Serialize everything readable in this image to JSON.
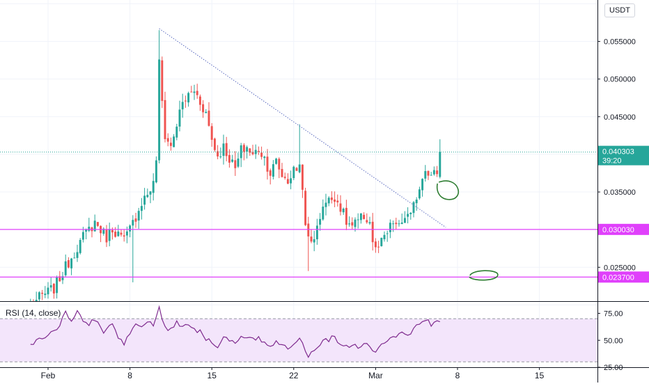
{
  "chart_data": {
    "type": "candlestick",
    "symbol_quote": "USDT",
    "price_axis": {
      "range": [
        0.0205,
        0.0605
      ],
      "ticks": [
        "0.055000",
        "0.050000",
        "0.045000",
        "0.035000",
        "0.025000"
      ],
      "clipped_ticks": [
        "0.060000",
        "0.040000",
        "0.030000",
        "0.020000"
      ]
    },
    "time_axis": {
      "labels": [
        {
          "label": "Feb",
          "bar": 0
        },
        {
          "label": "8",
          "bar": 28
        },
        {
          "label": "15",
          "bar": 56
        },
        {
          "label": "22",
          "bar": 84
        },
        {
          "label": "Mar",
          "bar": 112
        },
        {
          "label": "8",
          "bar": 140
        },
        {
          "label": "15",
          "bar": 168
        }
      ],
      "bars_per_day": 4,
      "first_bar_offset": -6
    },
    "last_price": {
      "value": 0.040303,
      "label": "0.040303",
      "countdown": "39:20",
      "color": "#26a69a"
    },
    "horizontal_levels": [
      {
        "value": 0.03003,
        "label": "0.030030",
        "color": "#e040fb"
      },
      {
        "value": 0.0237,
        "label": "0.023700",
        "color": "#e040fb"
      }
    ],
    "trendline": {
      "from": {
        "bar": 38,
        "price": 0.0567
      },
      "to": {
        "bar": 136,
        "price": 0.0303
      },
      "style": "dotted",
      "color": "#5b6bc0"
    },
    "annotations": [
      {
        "type": "ellipse",
        "bar": 136,
        "price": 0.0352,
        "color": "#2e7d32"
      },
      {
        "type": "ellipse",
        "bar": 149,
        "price": 0.0239,
        "color": "#2e7d32"
      }
    ],
    "up_color": "#26a69a",
    "down_color": "#ef5350",
    "waypoints": [
      {
        "bar": -6,
        "price": 0.02
      },
      {
        "bar": -2,
        "price": 0.0212
      },
      {
        "bar": 2,
        "price": 0.0222
      },
      {
        "bar": 6,
        "price": 0.025
      },
      {
        "bar": 10,
        "price": 0.0277
      },
      {
        "bar": 12,
        "price": 0.029
      },
      {
        "bar": 14,
        "price": 0.03
      },
      {
        "bar": 16,
        "price": 0.031
      },
      {
        "bar": 18,
        "price": 0.03
      },
      {
        "bar": 20,
        "price": 0.029
      },
      {
        "bar": 22,
        "price": 0.0302
      },
      {
        "bar": 24,
        "price": 0.0294
      },
      {
        "bar": 26,
        "price": 0.0285
      },
      {
        "bar": 28,
        "price": 0.03
      },
      {
        "bar": 30,
        "price": 0.0318
      },
      {
        "bar": 32,
        "price": 0.0337
      },
      {
        "bar": 34,
        "price": 0.0348
      },
      {
        "bar": 36,
        "price": 0.036
      },
      {
        "bar": 37,
        "price": 0.0395
      },
      {
        "bar": 38,
        "price": 0.052
      },
      {
        "bar": 39,
        "price": 0.047
      },
      {
        "bar": 40,
        "price": 0.0425
      },
      {
        "bar": 42,
        "price": 0.041
      },
      {
        "bar": 44,
        "price": 0.044
      },
      {
        "bar": 46,
        "price": 0.0468
      },
      {
        "bar": 48,
        "price": 0.0478
      },
      {
        "bar": 50,
        "price": 0.0485
      },
      {
        "bar": 52,
        "price": 0.047
      },
      {
        "bar": 54,
        "price": 0.0455
      },
      {
        "bar": 56,
        "price": 0.042
      },
      {
        "bar": 58,
        "price": 0.0398
      },
      {
        "bar": 60,
        "price": 0.041
      },
      {
        "bar": 62,
        "price": 0.0395
      },
      {
        "bar": 64,
        "price": 0.038
      },
      {
        "bar": 66,
        "price": 0.0405
      },
      {
        "bar": 68,
        "price": 0.041
      },
      {
        "bar": 70,
        "price": 0.0398
      },
      {
        "bar": 72,
        "price": 0.0408
      },
      {
        "bar": 74,
        "price": 0.0395
      },
      {
        "bar": 76,
        "price": 0.0375
      },
      {
        "bar": 78,
        "price": 0.039
      },
      {
        "bar": 80,
        "price": 0.0372
      },
      {
        "bar": 82,
        "price": 0.0365
      },
      {
        "bar": 84,
        "price": 0.0378
      },
      {
        "bar": 86,
        "price": 0.0385
      },
      {
        "bar": 87,
        "price": 0.036
      },
      {
        "bar": 88,
        "price": 0.03
      },
      {
        "bar": 89,
        "price": 0.0288
      },
      {
        "bar": 90,
        "price": 0.0285
      },
      {
        "bar": 92,
        "price": 0.03
      },
      {
        "bar": 94,
        "price": 0.0335
      },
      {
        "bar": 96,
        "price": 0.0338
      },
      {
        "bar": 98,
        "price": 0.0345
      },
      {
        "bar": 100,
        "price": 0.033
      },
      {
        "bar": 102,
        "price": 0.031
      },
      {
        "bar": 104,
        "price": 0.0304
      },
      {
        "bar": 106,
        "price": 0.031
      },
      {
        "bar": 108,
        "price": 0.0318
      },
      {
        "bar": 110,
        "price": 0.031
      },
      {
        "bar": 111,
        "price": 0.0285
      },
      {
        "bar": 112,
        "price": 0.0272
      },
      {
        "bar": 114,
        "price": 0.0282
      },
      {
        "bar": 116,
        "price": 0.0295
      },
      {
        "bar": 118,
        "price": 0.031
      },
      {
        "bar": 120,
        "price": 0.0302
      },
      {
        "bar": 122,
        "price": 0.0318
      },
      {
        "bar": 124,
        "price": 0.0316
      },
      {
        "bar": 126,
        "price": 0.0345
      },
      {
        "bar": 128,
        "price": 0.037
      },
      {
        "bar": 129,
        "price": 0.0385
      },
      {
        "bar": 131,
        "price": 0.037
      },
      {
        "bar": 133,
        "price": 0.0378
      },
      {
        "bar": 134,
        "price": 0.0403
      }
    ],
    "rsi": {
      "label": "RSI (14, close)",
      "range": [
        25,
        85
      ],
      "ticks": [
        "75.00",
        "50.00",
        "25.00"
      ],
      "bands": [
        70,
        30
      ],
      "line_color": "#7e2a8e",
      "band_fill": "#f3e5fb",
      "waypoints": [
        {
          "bar": -6,
          "value": 46
        },
        {
          "bar": 0,
          "value": 55
        },
        {
          "bar": 4,
          "value": 63
        },
        {
          "bar": 6,
          "value": 76
        },
        {
          "bar": 8,
          "value": 68
        },
        {
          "bar": 10,
          "value": 78
        },
        {
          "bar": 12,
          "value": 67
        },
        {
          "bar": 14,
          "value": 65
        },
        {
          "bar": 16,
          "value": 70
        },
        {
          "bar": 18,
          "value": 60
        },
        {
          "bar": 20,
          "value": 58
        },
        {
          "bar": 22,
          "value": 66
        },
        {
          "bar": 24,
          "value": 52
        },
        {
          "bar": 26,
          "value": 48
        },
        {
          "bar": 28,
          "value": 57
        },
        {
          "bar": 30,
          "value": 67
        },
        {
          "bar": 32,
          "value": 62
        },
        {
          "bar": 34,
          "value": 68
        },
        {
          "bar": 36,
          "value": 62
        },
        {
          "bar": 37,
          "value": 73
        },
        {
          "bar": 38,
          "value": 81
        },
        {
          "bar": 40,
          "value": 62
        },
        {
          "bar": 42,
          "value": 60
        },
        {
          "bar": 44,
          "value": 66
        },
        {
          "bar": 46,
          "value": 64
        },
        {
          "bar": 48,
          "value": 66
        },
        {
          "bar": 50,
          "value": 60
        },
        {
          "bar": 52,
          "value": 58
        },
        {
          "bar": 54,
          "value": 52
        },
        {
          "bar": 56,
          "value": 48
        },
        {
          "bar": 58,
          "value": 45
        },
        {
          "bar": 60,
          "value": 52
        },
        {
          "bar": 62,
          "value": 50
        },
        {
          "bar": 64,
          "value": 46
        },
        {
          "bar": 66,
          "value": 52
        },
        {
          "bar": 68,
          "value": 53
        },
        {
          "bar": 70,
          "value": 50
        },
        {
          "bar": 72,
          "value": 51
        },
        {
          "bar": 74,
          "value": 48
        },
        {
          "bar": 76,
          "value": 45
        },
        {
          "bar": 78,
          "value": 50
        },
        {
          "bar": 80,
          "value": 46
        },
        {
          "bar": 82,
          "value": 44
        },
        {
          "bar": 84,
          "value": 48
        },
        {
          "bar": 86,
          "value": 52
        },
        {
          "bar": 88,
          "value": 40
        },
        {
          "bar": 89,
          "value": 36
        },
        {
          "bar": 90,
          "value": 38
        },
        {
          "bar": 92,
          "value": 42
        },
        {
          "bar": 94,
          "value": 52
        },
        {
          "bar": 96,
          "value": 51
        },
        {
          "bar": 98,
          "value": 53
        },
        {
          "bar": 100,
          "value": 47
        },
        {
          "bar": 102,
          "value": 44
        },
        {
          "bar": 104,
          "value": 46
        },
        {
          "bar": 106,
          "value": 45
        },
        {
          "bar": 108,
          "value": 47
        },
        {
          "bar": 110,
          "value": 44
        },
        {
          "bar": 112,
          "value": 40
        },
        {
          "bar": 114,
          "value": 45
        },
        {
          "bar": 116,
          "value": 50
        },
        {
          "bar": 118,
          "value": 53
        },
        {
          "bar": 120,
          "value": 55
        },
        {
          "bar": 122,
          "value": 57
        },
        {
          "bar": 124,
          "value": 56
        },
        {
          "bar": 126,
          "value": 63
        },
        {
          "bar": 128,
          "value": 68
        },
        {
          "bar": 129,
          "value": 70
        },
        {
          "bar": 131,
          "value": 64
        },
        {
          "bar": 133,
          "value": 66
        },
        {
          "bar": 134,
          "value": 69
        }
      ]
    }
  }
}
